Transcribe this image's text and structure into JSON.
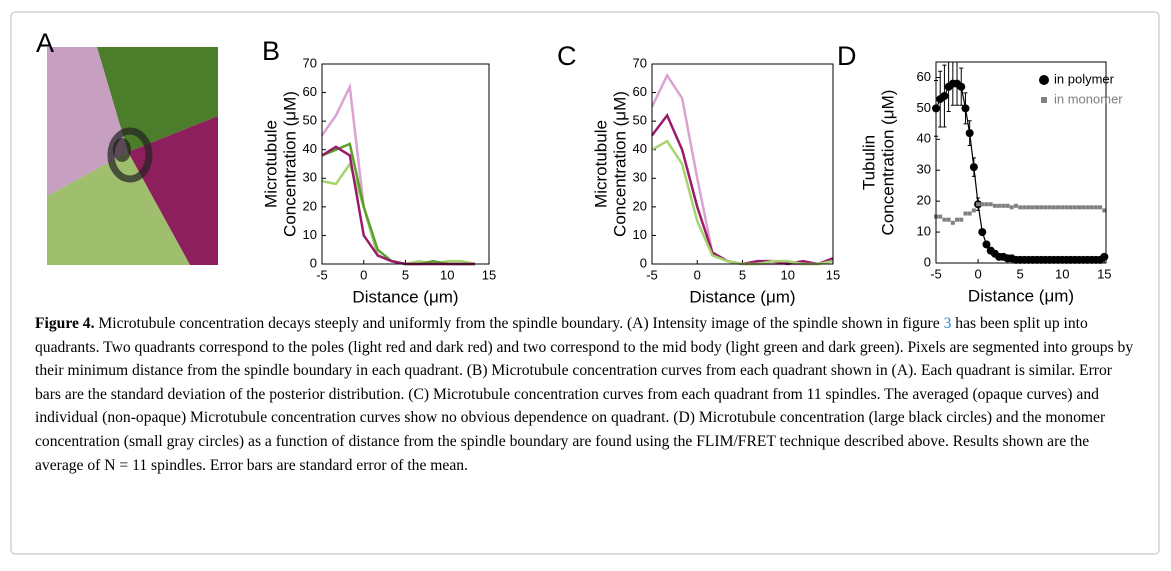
{
  "figure": {
    "panel_labels": [
      "A",
      "B",
      "C",
      "D"
    ],
    "caption": {
      "label": "Figure 4.",
      "text_1": "Microtubule concentration decays steeply and uniformly from the spindle boundary. (A) Intensity image of the spindle shown in figure",
      "ref": "3",
      "text_2": "has been split up into quadrants. Two quadrants correspond to the poles (light red and dark red) and two correspond to the mid body (light green and dark green). Pixels are segmented into groups by their minimum distance from the spindle boundary in each quadrant. (B) Microtubule concentration curves from each quadrant shown in (A). Each quadrant is similar. Error bars are the standard deviation of the posterior distribution. (C) Microtubule concentration curves from each quadrant from 11 spindles. The averaged (opaque curves) and individual (non-opaque) Microtubule concentration curves show no obvious dependence on quadrant. (D) Microtubule concentration (large black circles) and the monomer concentration (small gray circles) as a function of distance from the spindle boundary are found using the FLIM/FRET technique described above. Results shown are the average of N = 11 spindles. Error bars are standard error of the mean."
    }
  },
  "chart_data": [
    {
      "type": "line",
      "xlabel": "Distance (μm)",
      "ylabel": [
        "Microtubule",
        "Concentration (μM)"
      ],
      "x": [
        -5,
        -3.33,
        -1.67,
        0,
        1.67,
        3.33,
        5,
        6.67,
        8.33,
        10,
        11.67,
        13.33
      ],
      "series": [
        {
          "color": "#dba3d2",
          "values": [
            45,
            52,
            62,
            20,
            3,
            1,
            0,
            0,
            0,
            0,
            0,
            0
          ]
        },
        {
          "color": "#a6d46f",
          "values": [
            29,
            28,
            35,
            20,
            3,
            1,
            0,
            1,
            0,
            1,
            1,
            0
          ]
        },
        {
          "color": "#5aa02c",
          "values": [
            38,
            40,
            42,
            20,
            5,
            1,
            0,
            0,
            1,
            0,
            0,
            0
          ]
        },
        {
          "color": "#9b1b6b",
          "values": [
            38,
            41,
            38,
            10,
            3,
            1,
            0,
            0,
            0,
            0,
            0,
            0
          ]
        }
      ],
      "xlim": [
        -5,
        15
      ],
      "ylim": [
        0,
        70
      ],
      "xticks": [
        -5,
        0,
        5,
        10,
        15
      ],
      "yticks": [
        0,
        10,
        20,
        30,
        40,
        50,
        60,
        70
      ]
    },
    {
      "type": "line",
      "xlabel": "Distance (μm)",
      "ylabel": [
        "Microtubule",
        "Concentration (μM)"
      ],
      "x": [
        -5,
        -3.33,
        -1.67,
        0,
        1.67,
        3.33,
        5,
        6.67,
        8.33,
        10,
        11.67,
        13.33,
        15
      ],
      "series": [
        {
          "color": "#dba3d2",
          "values": [
            55,
            66,
            58,
            30,
            4,
            1,
            0,
            0,
            0,
            0,
            0,
            0,
            1
          ]
        },
        {
          "color": "#9b1b6b",
          "values": [
            45,
            52,
            40,
            20,
            4,
            1,
            0,
            1,
            1,
            0,
            1,
            0,
            2
          ]
        },
        {
          "color": "#a6d46f",
          "values": [
            40,
            43,
            35,
            15,
            3,
            1,
            0,
            0,
            1,
            1,
            0,
            0,
            1
          ]
        }
      ],
      "xlim": [
        -5,
        15
      ],
      "ylim": [
        0,
        70
      ],
      "xticks": [
        -5,
        0,
        5,
        10,
        15
      ],
      "yticks": [
        0,
        10,
        20,
        30,
        40,
        50,
        60,
        70
      ]
    },
    {
      "type": "scatter",
      "xlabel": "Distance (μm)",
      "ylabel": [
        "Tubulin",
        "Concentration (μM)"
      ],
      "x": [
        -5,
        -4.5,
        -4,
        -3.5,
        -3,
        -2.5,
        -2,
        -1.5,
        -1,
        -0.5,
        0,
        0.5,
        1,
        1.5,
        2,
        2.5,
        3,
        3.5,
        4,
        4.5,
        5,
        5.5,
        6,
        6.5,
        7,
        7.5,
        8,
        8.5,
        9,
        9.5,
        10,
        10.5,
        11,
        11.5,
        12,
        12.5,
        13,
        13.5,
        14,
        14.5,
        15
      ],
      "series": [
        {
          "name": "in polymer",
          "color": "#000000",
          "marker": "circle",
          "line": true,
          "values": [
            50,
            53,
            54,
            57,
            58,
            58,
            57,
            50,
            42,
            31,
            19,
            10,
            6,
            4,
            3,
            2,
            2,
            1.5,
            1.5,
            1,
            1,
            1,
            1,
            1,
            1,
            1,
            1,
            1,
            1,
            1,
            1,
            1,
            1,
            1,
            1,
            1,
            1,
            1,
            1,
            1,
            2
          ],
          "errors": [
            9,
            9,
            10,
            8,
            7,
            7,
            6,
            5,
            4,
            3,
            2,
            1,
            1,
            1,
            1,
            1,
            1,
            1,
            1,
            1,
            1,
            1,
            1,
            1,
            1,
            1,
            1,
            1,
            1,
            1,
            1,
            1,
            1,
            1,
            1,
            1,
            1,
            1,
            1,
            1,
            1
          ]
        },
        {
          "name": "in monomer",
          "color": "#808080",
          "marker": "square",
          "line": false,
          "values": [
            15,
            15,
            14,
            14,
            13,
            14,
            14,
            16,
            16,
            17,
            19,
            19,
            19,
            19,
            18.5,
            18.5,
            18.5,
            18.5,
            18,
            18.5,
            18,
            18,
            18,
            18,
            18,
            18,
            18,
            18,
            18,
            18,
            18,
            18,
            18,
            18,
            18,
            18,
            18,
            18,
            18,
            18,
            17
          ]
        }
      ],
      "xlim": [
        -5,
        15.2
      ],
      "ylim": [
        0,
        65
      ],
      "xticks": [
        -5,
        0,
        5,
        10,
        15
      ],
      "yticks": [
        0,
        10,
        20,
        30,
        40,
        50,
        60
      ],
      "legend": "upper right"
    }
  ]
}
